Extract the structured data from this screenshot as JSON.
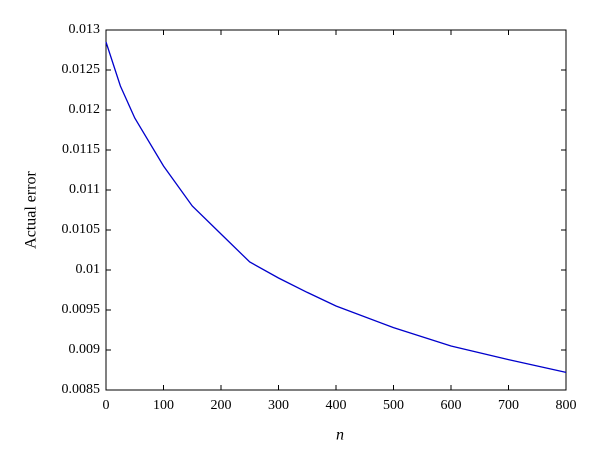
{
  "chart_data": {
    "type": "line",
    "xlabel": "n",
    "ylabel": "Actual error",
    "x": [
      0,
      25,
      50,
      100,
      150,
      200,
      250,
      300,
      350,
      400,
      500,
      600,
      700,
      800
    ],
    "series": [
      {
        "color": "#0000cc",
        "values": [
          0.01285,
          0.0123,
          0.0119,
          0.0113,
          0.0108,
          0.01045,
          0.0101,
          0.0099,
          0.00972,
          0.00955,
          0.00928,
          0.00905,
          0.00888,
          0.00872
        ]
      }
    ],
    "xlim": [
      0,
      800
    ],
    "ylim": [
      0.0085,
      0.013
    ],
    "xticks": [
      0,
      100,
      200,
      300,
      400,
      500,
      600,
      700,
      800
    ],
    "yticks": [
      0.0085,
      0.009,
      0.0095,
      0.01,
      0.0105,
      0.011,
      0.0115,
      0.012,
      0.0125,
      0.013
    ]
  }
}
